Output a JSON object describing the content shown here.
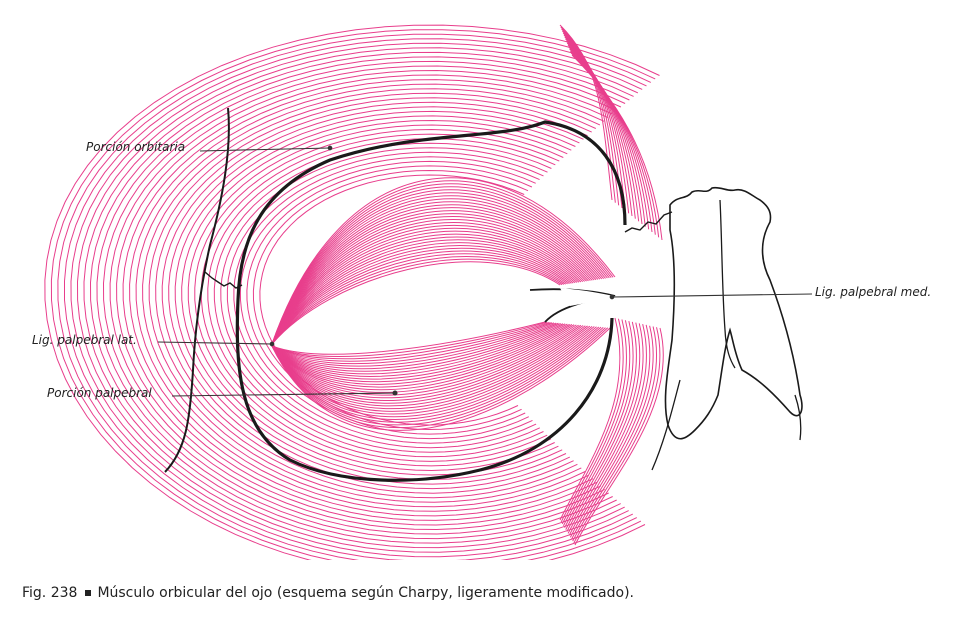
{
  "figure": {
    "labels": {
      "orbital": "Porción orbitaria",
      "lateral_ligament": "Lig. palpebral lat.",
      "palpebral": "Porción palpebral",
      "medial_ligament": "Lig. palpebral med."
    },
    "caption": {
      "number": "Fig. 238",
      "text": "Músculo orbicular del ojo (esquema según Charpy, ligeramente modificado)."
    },
    "colors": {
      "muscle_fibers": "#e83e8c",
      "outline": "#1a1a1a",
      "leader_line": "#333333"
    }
  }
}
